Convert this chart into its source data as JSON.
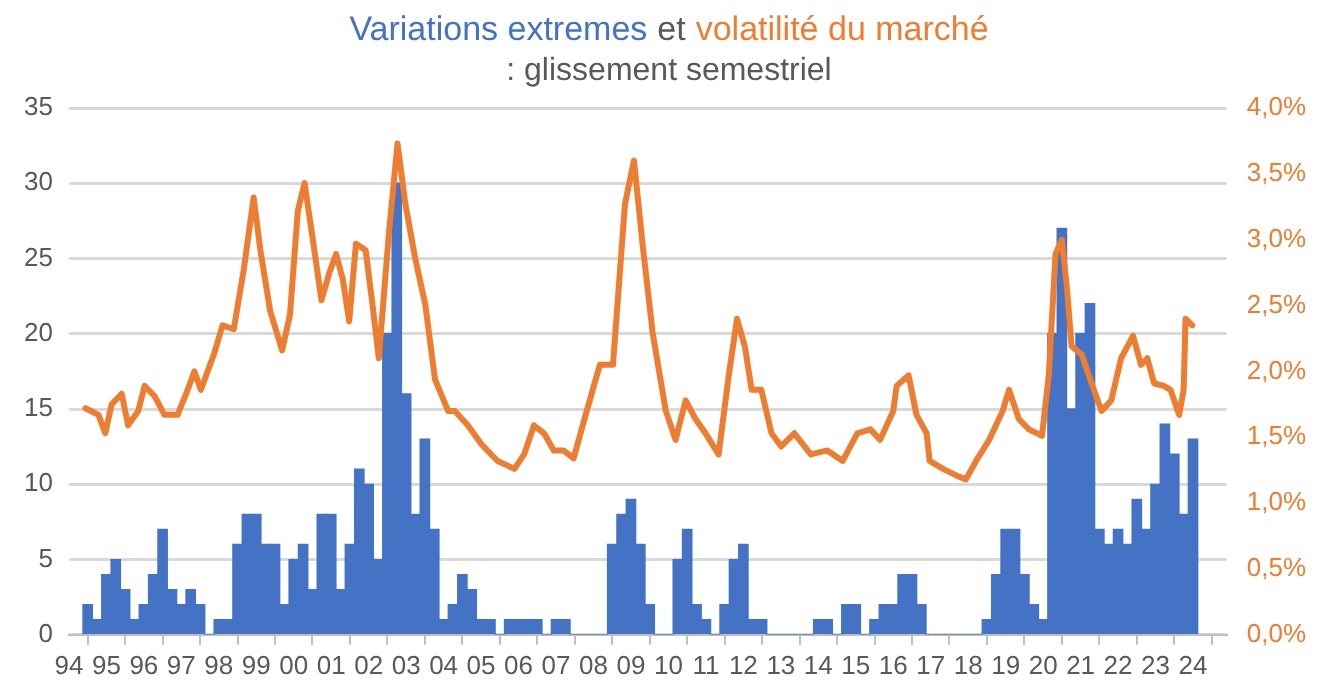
{
  "chart_data": {
    "type": "bar",
    "annotations": [
      "et"
    ],
    "subtitle": ": glissement semestriel",
    "xlim": [
      1994,
      2024.9
    ],
    "xticks": [
      {
        "value": 1994,
        "label": "94"
      },
      {
        "value": 1995,
        "label": "95"
      },
      {
        "value": 1996,
        "label": "96"
      },
      {
        "value": 1997,
        "label": "97"
      },
      {
        "value": 1998,
        "label": "98"
      },
      {
        "value": 1999,
        "label": "99"
      },
      {
        "value": 2000,
        "label": "00"
      },
      {
        "value": 2001,
        "label": "01"
      },
      {
        "value": 2002,
        "label": "02"
      },
      {
        "value": 2003,
        "label": "03"
      },
      {
        "value": 2004,
        "label": "04"
      },
      {
        "value": 2005,
        "label": "05"
      },
      {
        "value": 2006,
        "label": "06"
      },
      {
        "value": 2007,
        "label": "07"
      },
      {
        "value": 2008,
        "label": "08"
      },
      {
        "value": 2009,
        "label": "09"
      },
      {
        "value": 2010,
        "label": "10"
      },
      {
        "value": 2011,
        "label": "11"
      },
      {
        "value": 2012,
        "label": "12"
      },
      {
        "value": 2013,
        "label": "13"
      },
      {
        "value": 2014,
        "label": "14"
      },
      {
        "value": 2015,
        "label": "15"
      },
      {
        "value": 2016,
        "label": "16"
      },
      {
        "value": 2017,
        "label": "17"
      },
      {
        "value": 2018,
        "label": "18"
      },
      {
        "value": 2019,
        "label": "19"
      },
      {
        "value": 2020,
        "label": "20"
      },
      {
        "value": 2021,
        "label": "21"
      },
      {
        "value": 2022,
        "label": "22"
      },
      {
        "value": 2023,
        "label": "23"
      },
      {
        "value": 2024,
        "label": "24"
      }
    ],
    "ylim": [
      0,
      35
    ],
    "yticks": [
      0,
      5,
      10,
      15,
      20,
      25,
      30,
      35
    ],
    "y2lim": [
      0,
      4
    ],
    "y2ticks": [
      {
        "value": 0,
        "label": "0,0%"
      },
      {
        "value": 0.5,
        "label": "0,5%"
      },
      {
        "value": 1,
        "label": "1,0%"
      },
      {
        "value": 1.5,
        "label": "1,5%"
      },
      {
        "value": 2,
        "label": "2,0%"
      },
      {
        "value": 2.5,
        "label": "2,5%"
      },
      {
        "value": 3,
        "label": "3,0%"
      },
      {
        "value": 3.5,
        "label": "3,5%"
      },
      {
        "value": 4,
        "label": "4,0%"
      }
    ],
    "grid": "y",
    "legend": false,
    "series": [
      {
        "name": "Variations extremes",
        "color": "#4472c4",
        "x": [
          1994.5,
          1994.75,
          1995,
          1995.25,
          1995.5,
          1995.75,
          1996,
          1996.25,
          1996.5,
          1996.75,
          1997,
          1997.25,
          1997.5,
          1997.75,
          1998,
          1998.25,
          1998.5,
          1998.75,
          1999,
          1999.25,
          1999.5,
          1999.75,
          2000,
          2000.25,
          2000.5,
          2000.75,
          2001,
          2001.25,
          2001.5,
          2001.75,
          2002,
          2002.25,
          2002.5,
          2002.75,
          2003,
          2003.25,
          2003.5,
          2003.75,
          2004,
          2004.25,
          2004.5,
          2004.75,
          2005,
          2005.25,
          2005.5,
          2005.75,
          2006,
          2006.25,
          2006.5,
          2006.75,
          2007,
          2007.25,
          2007.5,
          2007.75,
          2008,
          2008.25,
          2008.5,
          2008.75,
          2009,
          2009.25,
          2009.5,
          2009.75,
          2010,
          2010.25,
          2010.5,
          2010.75,
          2011,
          2011.25,
          2011.5,
          2011.75,
          2012,
          2012.25,
          2012.5,
          2012.75,
          2013,
          2013.25,
          2013.5,
          2013.75,
          2014,
          2014.25,
          2014.5,
          2014.75,
          2015,
          2015.25,
          2015.5,
          2015.75,
          2016,
          2016.25,
          2016.5,
          2016.75,
          2017,
          2017.25,
          2017.5,
          2017.75,
          2018,
          2018.25,
          2018.5,
          2018.75,
          2019,
          2019.25,
          2019.5,
          2019.75,
          2020,
          2020.25,
          2020.5,
          2020.75,
          2021,
          2021.25,
          2021.5,
          2021.75,
          2022,
          2022.25,
          2022.5,
          2022.75,
          2023,
          2023.25,
          2023.5,
          2023.75,
          2024
        ],
        "values": [
          2,
          1,
          4,
          5,
          3,
          1,
          2,
          4,
          7,
          3,
          2,
          3,
          2,
          0,
          1,
          1,
          6,
          8,
          8,
          6,
          6,
          2,
          5,
          6,
          3,
          8,
          8,
          3,
          6,
          11,
          10,
          5,
          20,
          30,
          16,
          8,
          13,
          7,
          1,
          2,
          4,
          3,
          1,
          1,
          0,
          1,
          1,
          1,
          1,
          0,
          1,
          1,
          0,
          0,
          0,
          0,
          6,
          8,
          9,
          6,
          2,
          0,
          0,
          5,
          7,
          2,
          1,
          0,
          2,
          5,
          6,
          1,
          1,
          0,
          0,
          0,
          0,
          0,
          1,
          1,
          0,
          2,
          2,
          0,
          1,
          2,
          2,
          4,
          4,
          2,
          0,
          0,
          0,
          0,
          0,
          0,
          1,
          4,
          7,
          7,
          4,
          2,
          1,
          20,
          27,
          15,
          20,
          22,
          7,
          6,
          7,
          6,
          9,
          7,
          10,
          14,
          12,
          8,
          13
        ]
      },
      {
        "name": "volatilité du marché",
        "type": "line",
        "axis": "y2",
        "color": "#ed7d31",
        "x": [
          1994.44,
          1994.79,
          1994.97,
          1995.14,
          1995.41,
          1995.58,
          1995.85,
          1996.02,
          1996.29,
          1996.55,
          1996.9,
          1997.17,
          1997.35,
          1997.52,
          1997.87,
          1998.1,
          1998.4,
          1998.67,
          1998.93,
          1999.11,
          1999.37,
          1999.69,
          1999.9,
          2000.11,
          2000.29,
          2000.51,
          2000.74,
          2000.95,
          2001.13,
          2001.31,
          2001.48,
          2001.66,
          2001.92,
          2002.1,
          2002.27,
          2002.54,
          2002.77,
          2002.98,
          2003.24,
          2003.51,
          2003.77,
          2004.12,
          2004.3,
          2004.65,
          2005,
          2005.44,
          2005.89,
          2006.15,
          2006.41,
          2006.68,
          2006.94,
          2007.2,
          2007.47,
          2007.82,
          2008.17,
          2008.52,
          2008.84,
          2009.08,
          2009.32,
          2009.58,
          2009.93,
          2010.19,
          2010.46,
          2010.72,
          2010.99,
          2011.34,
          2011.61,
          2011.83,
          2012.04,
          2012.22,
          2012.48,
          2012.75,
          2013.01,
          2013.36,
          2013.8,
          2014.24,
          2014.65,
          2015.04,
          2015.39,
          2015.65,
          2016,
          2016.09,
          2016.41,
          2016.62,
          2016.89,
          2016.97,
          2017.33,
          2017.68,
          2017.94,
          2018.21,
          2018.56,
          2018.92,
          2019.09,
          2019.35,
          2019.62,
          2019.97,
          2020.15,
          2020.33,
          2020.5,
          2020.64,
          2020.76,
          2021.03,
          2021.29,
          2021.56,
          2021.82,
          2022.08,
          2022.4,
          2022.61,
          2022.78,
          2022.96,
          2023.22,
          2023.4,
          2023.63,
          2023.75,
          2023.8,
          2023.98
        ],
        "values": [
          1.72,
          1.67,
          1.53,
          1.75,
          1.83,
          1.59,
          1.7,
          1.89,
          1.81,
          1.67,
          1.67,
          1.86,
          2.0,
          1.86,
          2.13,
          2.35,
          2.32,
          2.78,
          3.32,
          2.92,
          2.46,
          2.16,
          2.43,
          3.22,
          3.43,
          3.0,
          2.54,
          2.75,
          2.89,
          2.7,
          2.38,
          2.97,
          2.92,
          2.51,
          2.1,
          3.05,
          3.73,
          3.27,
          2.86,
          2.51,
          1.94,
          1.7,
          1.7,
          1.59,
          1.45,
          1.32,
          1.26,
          1.37,
          1.59,
          1.53,
          1.4,
          1.4,
          1.34,
          1.7,
          2.05,
          2.05,
          3.27,
          3.6,
          2.94,
          2.29,
          1.7,
          1.48,
          1.78,
          1.64,
          1.53,
          1.37,
          1.97,
          2.4,
          2.19,
          1.86,
          1.86,
          1.53,
          1.43,
          1.53,
          1.37,
          1.4,
          1.32,
          1.53,
          1.56,
          1.48,
          1.7,
          1.89,
          1.97,
          1.67,
          1.53,
          1.32,
          1.26,
          1.21,
          1.18,
          1.32,
          1.48,
          1.7,
          1.86,
          1.64,
          1.56,
          1.51,
          1.97,
          2.89,
          3.0,
          2.62,
          2.19,
          2.13,
          1.91,
          1.7,
          1.78,
          2.1,
          2.27,
          2.05,
          2.1,
          1.91,
          1.89,
          1.86,
          1.67,
          1.86,
          2.4,
          2.35
        ]
      }
    ]
  }
}
